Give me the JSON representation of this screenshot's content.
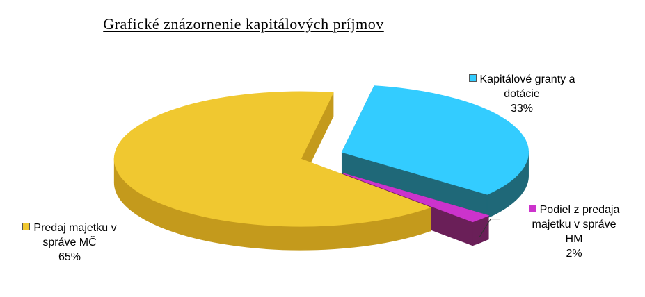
{
  "chart_data": {
    "type": "pie",
    "title": "Grafické znázornenie kapitálových príjmov",
    "slices": [
      {
        "name": "Kapitálové granty a dotácie",
        "value": 33,
        "label_lines": [
          "Kapitálové granty a",
          "dotácie"
        ],
        "pct_label": "33%",
        "color": "#33ccff",
        "side_color": "#1f6878"
      },
      {
        "name": "Podiel z predaja majetku v správe HM",
        "value": 2,
        "label_lines": [
          "Podiel z predaja",
          "majetku v správe",
          "HM"
        ],
        "pct_label": "2%",
        "color": "#cc33cc",
        "side_color": "#6a1f58"
      },
      {
        "name": "Predaj majetku v správe MČ",
        "value": 65,
        "label_lines": [
          "Predaj majetku v",
          "správe MČ"
        ],
        "pct_label": "65%",
        "color": "#f0c830",
        "side_color": "#c49a1c"
      }
    ],
    "legend": "labels on slices",
    "style": "3d exploded pie"
  }
}
